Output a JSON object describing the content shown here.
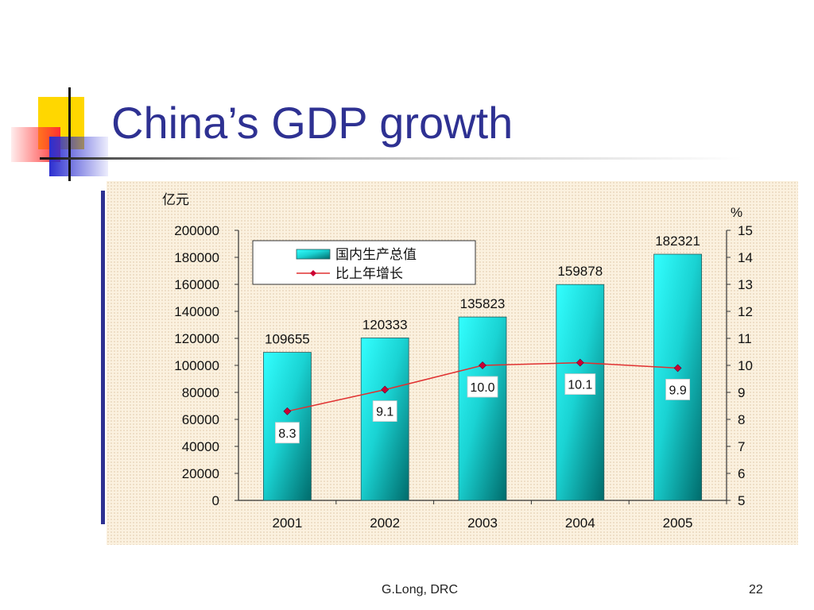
{
  "slide": {
    "title": "China’s GDP growth",
    "footer_credit": "G.Long, DRC",
    "page_number": "22"
  },
  "colors": {
    "title": "#2e3192",
    "bar_light": "#33ffff",
    "bar_dark": "#006b6b",
    "line": "#e03030",
    "marker": "#cc0033"
  },
  "chart_data": {
    "type": "bar",
    "categories": [
      "2001",
      "2002",
      "2003",
      "2004",
      "2005"
    ],
    "series": [
      {
        "name": "国内生产总值",
        "type": "bar",
        "axis": "left",
        "values": [
          109655,
          120333,
          135823,
          159878,
          182321
        ]
      },
      {
        "name": "比上年增长",
        "type": "line",
        "axis": "right",
        "values": [
          8.3,
          9.1,
          10.0,
          10.1,
          9.9
        ],
        "labels": [
          "8.3",
          "9.1",
          "10.0",
          "10.1",
          "9.9"
        ]
      }
    ],
    "ylabel": "亿元",
    "y2label": "%",
    "ylim": [
      0,
      200000
    ],
    "y_ticks": [
      0,
      20000,
      40000,
      60000,
      80000,
      100000,
      120000,
      140000,
      160000,
      180000,
      200000
    ],
    "y2lim": [
      5,
      15
    ],
    "y2_ticks": [
      5,
      6,
      7,
      8,
      9,
      10,
      11,
      12,
      13,
      14,
      15
    ],
    "legend": "top-left",
    "grid": false
  }
}
